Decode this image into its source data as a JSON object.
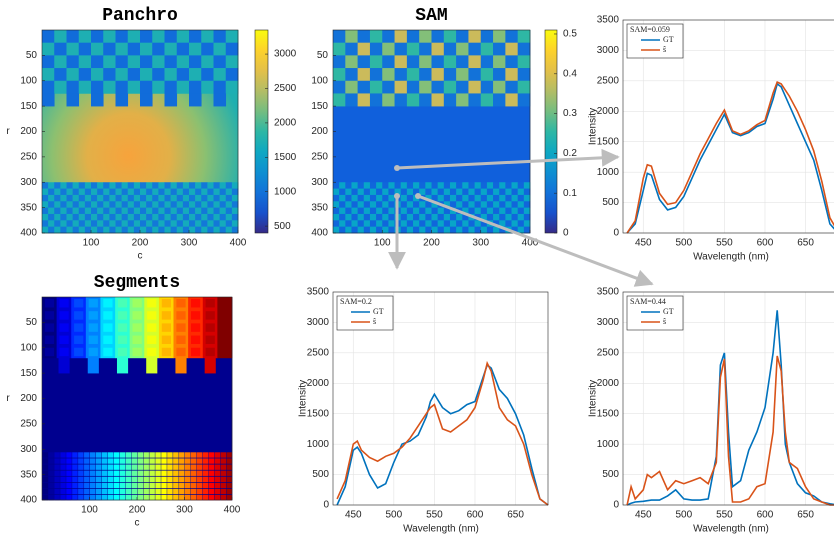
{
  "chart_data": [
    {
      "type": "image",
      "title": "Panchro",
      "xlabel": "c",
      "ylabel": "r",
      "xlim": [
        0,
        400
      ],
      "ylim": [
        0,
        400
      ],
      "xticks": [
        100,
        200,
        300,
        400
      ],
      "yticks": [
        50,
        100,
        150,
        200,
        250,
        300,
        350,
        400
      ],
      "colormap": "parula",
      "colorbar": {
        "lim": [
          400,
          3350
        ],
        "ticks": [
          500,
          1000,
          1500,
          2000,
          2500,
          3000
        ]
      }
    },
    {
      "type": "image",
      "title": "SAM",
      "xlim": [
        0,
        400
      ],
      "ylim": [
        0,
        400
      ],
      "xticks": [
        100,
        200,
        300,
        400
      ],
      "yticks": [
        50,
        100,
        150,
        200,
        250,
        300,
        350,
        400
      ],
      "colormap": "parula",
      "colorbar": {
        "lim": [
          0,
          0.51
        ],
        "ticks": [
          0,
          0.1,
          0.2,
          0.3,
          0.4,
          0.5
        ]
      }
    },
    {
      "type": "image",
      "title": "Segments",
      "xlabel": "c",
      "ylabel": "r",
      "xlim": [
        0,
        400
      ],
      "ylim": [
        0,
        400
      ],
      "xticks": [
        100,
        200,
        300,
        400
      ],
      "yticks": [
        50,
        100,
        150,
        200,
        250,
        300,
        350,
        400
      ],
      "colormap": "jet"
    },
    {
      "type": "line",
      "annotation": "SAM=0.059",
      "xlabel": "Wavelength (nm)",
      "ylabel": "Intensity",
      "x": [
        430,
        440,
        450,
        455,
        460,
        470,
        480,
        490,
        500,
        510,
        520,
        530,
        540,
        550,
        560,
        570,
        580,
        590,
        600,
        610,
        615,
        620,
        630,
        640,
        650,
        660,
        670,
        680,
        690
      ],
      "series": [
        {
          "name": "GT",
          "color": "#0072bd",
          "values": [
            0,
            150,
            700,
            980,
            950,
            550,
            380,
            420,
            600,
            900,
            1200,
            1450,
            1700,
            1950,
            1650,
            1600,
            1650,
            1750,
            1800,
            2200,
            2450,
            2400,
            2100,
            1800,
            1500,
            1200,
            700,
            150,
            0
          ]
        },
        {
          "name": "ŝ",
          "color": "#d95319",
          "values": [
            0,
            200,
            900,
            1120,
            1100,
            650,
            470,
            500,
            700,
            1000,
            1300,
            1550,
            1800,
            2020,
            1680,
            1620,
            1680,
            1780,
            1850,
            2300,
            2480,
            2450,
            2250,
            2000,
            1700,
            1350,
            850,
            250,
            20
          ]
        }
      ],
      "xlim": [
        425,
        690
      ],
      "ylim": [
        0,
        3500
      ],
      "xticks": [
        450,
        500,
        550,
        600,
        650
      ],
      "yticks": [
        0,
        500,
        1000,
        1500,
        2000,
        2500,
        3000,
        3500
      ],
      "grid": true
    },
    {
      "type": "line",
      "annotation": "SAM=0.2",
      "xlabel": "Wavelength (nm)",
      "ylabel": "Intensity",
      "x": [
        430,
        440,
        450,
        455,
        460,
        470,
        480,
        490,
        500,
        510,
        520,
        530,
        540,
        545,
        550,
        560,
        570,
        580,
        590,
        600,
        610,
        615,
        620,
        630,
        640,
        650,
        660,
        670,
        680,
        690
      ],
      "series": [
        {
          "name": "GT",
          "color": "#0072bd",
          "values": [
            0,
            300,
            900,
            950,
            850,
            500,
            280,
            350,
            700,
            1000,
            1050,
            1150,
            1450,
            1700,
            1820,
            1600,
            1500,
            1550,
            1650,
            1700,
            2100,
            2300,
            2250,
            1900,
            1750,
            1500,
            1150,
            600,
            100,
            0
          ]
        },
        {
          "name": "ŝ",
          "color": "#d95319",
          "values": [
            100,
            400,
            1000,
            1050,
            900,
            780,
            720,
            800,
            850,
            950,
            1100,
            1300,
            1500,
            1600,
            1650,
            1250,
            1200,
            1300,
            1400,
            1600,
            2050,
            2330,
            2200,
            1600,
            1400,
            1300,
            1000,
            500,
            100,
            0
          ]
        }
      ],
      "xlim": [
        425,
        690
      ],
      "ylim": [
        0,
        3500
      ],
      "xticks": [
        450,
        500,
        550,
        600,
        650
      ],
      "yticks": [
        0,
        500,
        1000,
        1500,
        2000,
        2500,
        3000,
        3500
      ],
      "grid": true
    },
    {
      "type": "line",
      "annotation": "SAM=0.44",
      "xlabel": "Wavelength (nm)",
      "ylabel": "Intensity",
      "x": [
        430,
        435,
        440,
        450,
        455,
        460,
        470,
        480,
        490,
        500,
        510,
        520,
        530,
        540,
        545,
        550,
        555,
        560,
        570,
        580,
        590,
        600,
        610,
        615,
        620,
        625,
        630,
        640,
        650,
        660,
        670,
        680,
        690
      ],
      "series": [
        {
          "name": "GT",
          "color": "#0072bd",
          "values": [
            0,
            30,
            50,
            60,
            70,
            80,
            80,
            150,
            250,
            100,
            80,
            80,
            100,
            800,
            2300,
            2500,
            1200,
            300,
            400,
            900,
            1200,
            1600,
            2500,
            3200,
            2300,
            1000,
            700,
            350,
            200,
            150,
            50,
            20,
            0
          ]
        },
        {
          "name": "ŝ",
          "color": "#d95319",
          "values": [
            0,
            300,
            100,
            250,
            500,
            450,
            550,
            250,
            400,
            350,
            400,
            450,
            350,
            700,
            2100,
            2400,
            800,
            50,
            50,
            100,
            300,
            350,
            1200,
            2450,
            2200,
            1200,
            700,
            600,
            300,
            100,
            50,
            0,
            0
          ]
        }
      ],
      "xlim": [
        425,
        690
      ],
      "ylim": [
        0,
        3500
      ],
      "xticks": [
        450,
        500,
        550,
        600,
        650
      ],
      "yticks": [
        0,
        500,
        1000,
        1500,
        2000,
        2500,
        3000,
        3500
      ],
      "grid": true
    }
  ]
}
